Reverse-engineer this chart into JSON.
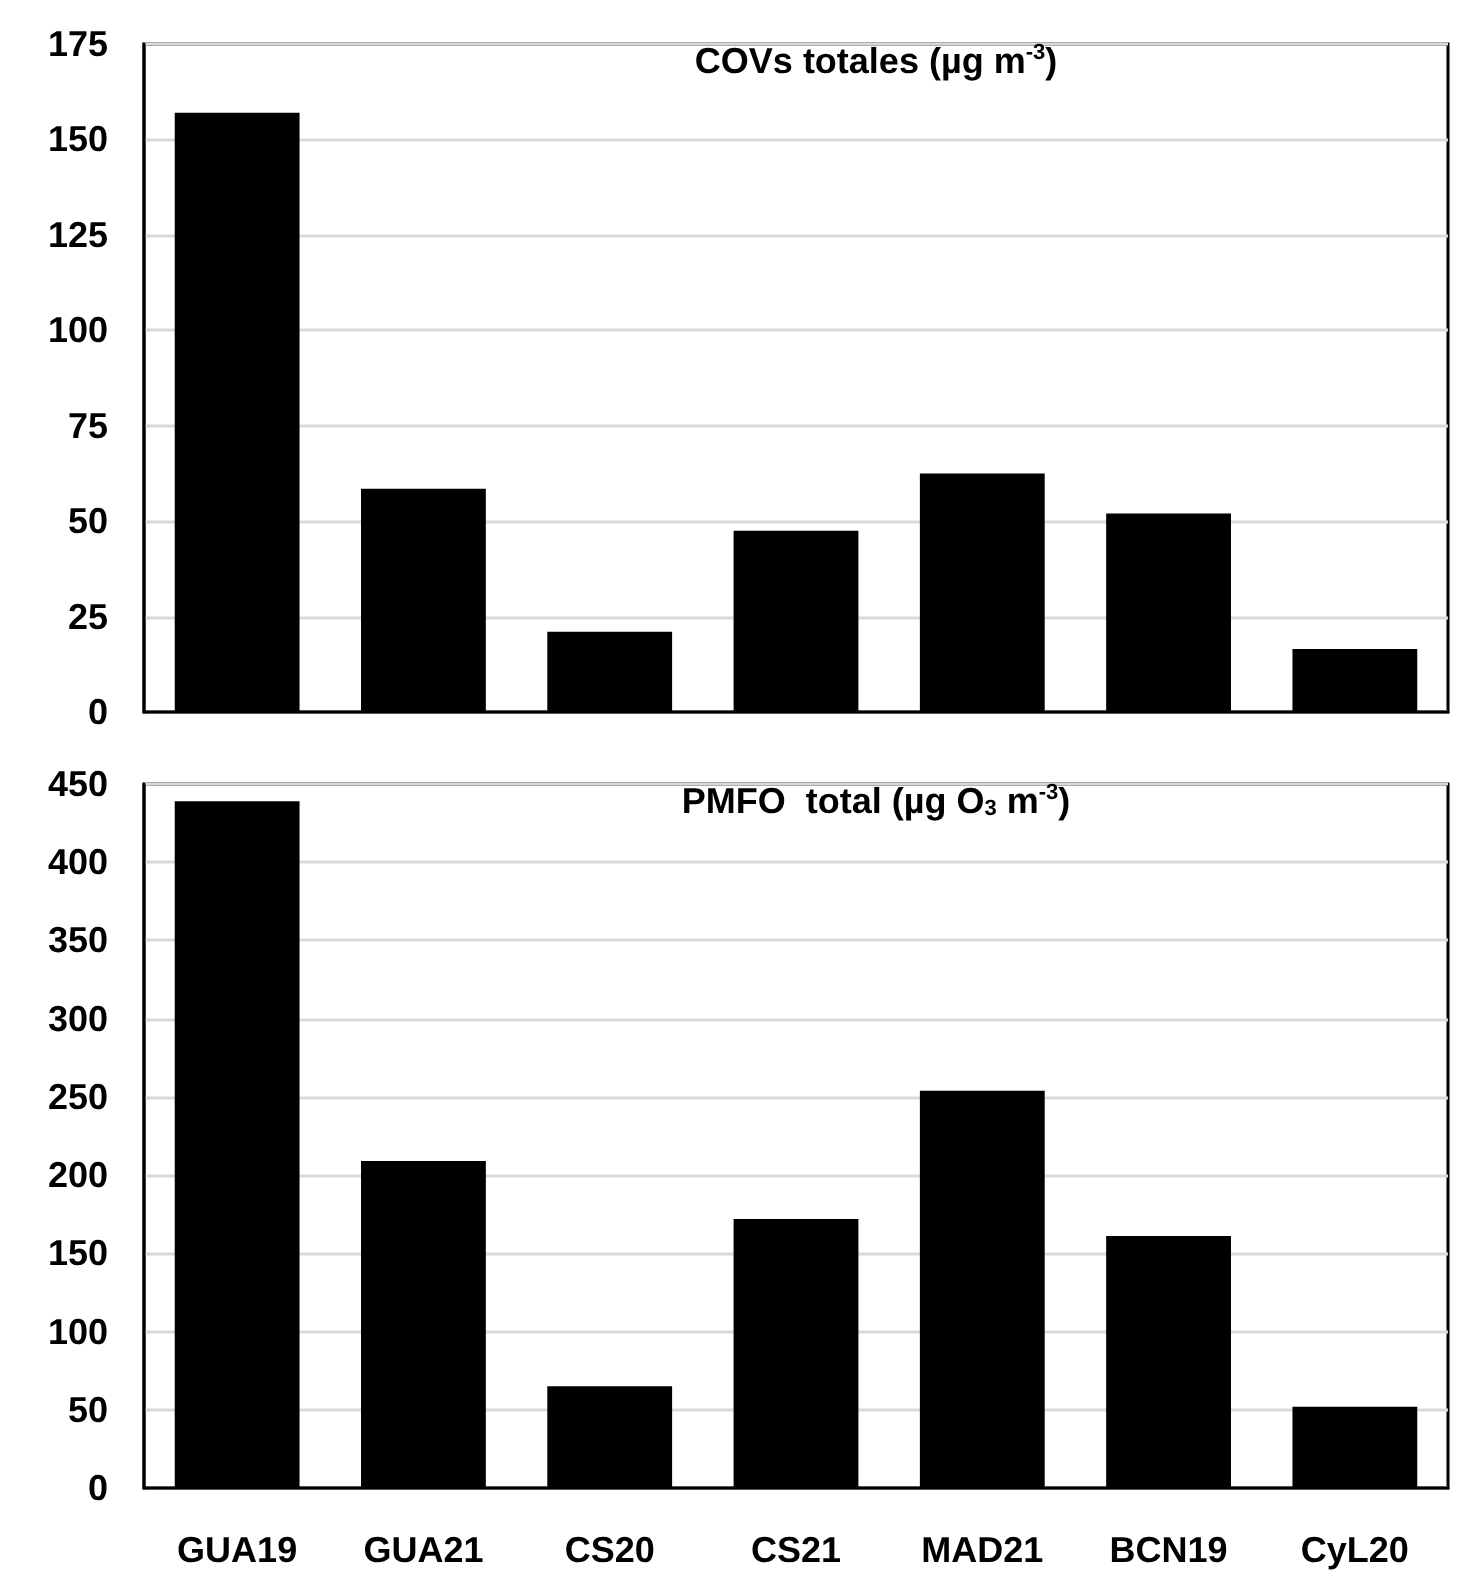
{
  "chart_data": [
    {
      "type": "bar",
      "title": "COVs totales (µg m$^{-3}$)",
      "categories": [
        null,
        null,
        null,
        null,
        null,
        null,
        null
      ],
      "values": [
        157,
        58.5,
        21,
        47.5,
        62.5,
        52,
        16.5
      ],
      "color": "#000000",
      "ylim": [
        0,
        175
      ],
      "yticks": [
        0,
        25,
        50,
        75,
        100,
        125,
        150,
        175
      ],
      "grid": "y"
    },
    {
      "type": "bar",
      "title": "PMFO  total (µg O$_{3}$ m$^{-3}$)",
      "categories": [
        "GUA19",
        "GUA21",
        "CS20",
        "CS21",
        "MAD21",
        "BCN19",
        "CyL20"
      ],
      "values": [
        439,
        209,
        65,
        172,
        254,
        161,
        52
      ],
      "color": "#000000",
      "ylim": [
        0,
        450
      ],
      "yticks": [
        0,
        50,
        100,
        150,
        200,
        250,
        300,
        350,
        400,
        450
      ],
      "grid": "y"
    }
  ]
}
